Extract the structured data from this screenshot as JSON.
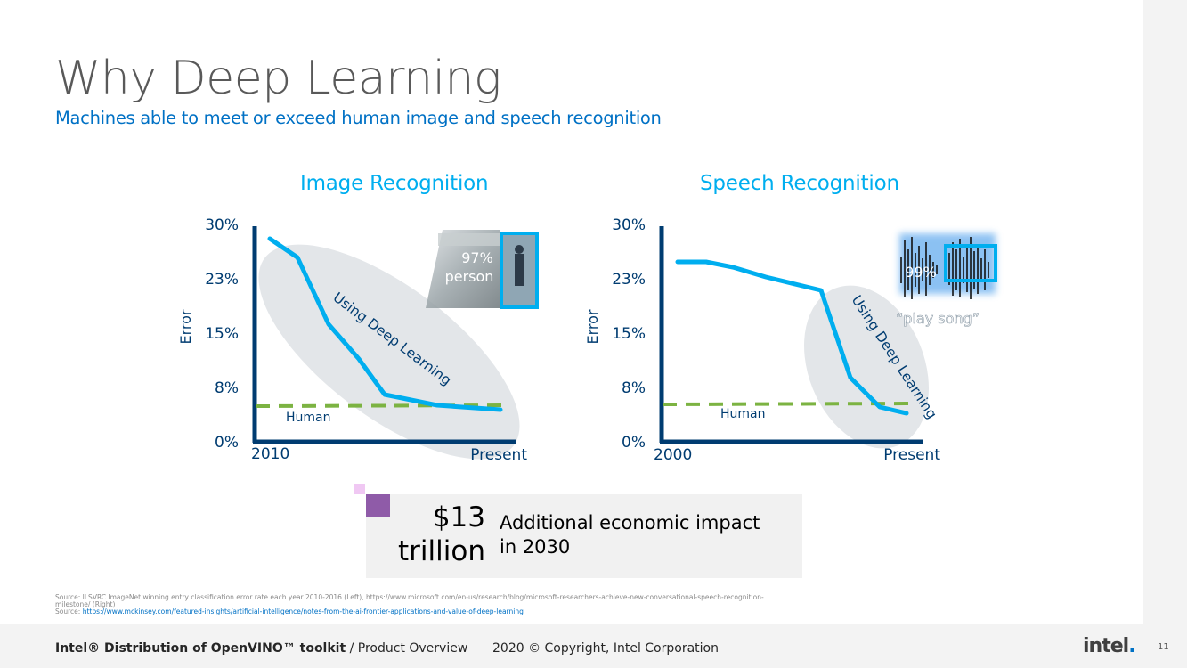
{
  "title": "Why Deep Learning",
  "subtitle": "Machines able to meet or exceed human image and speech recognition",
  "image_chart": {
    "title": "Image Recognition",
    "ylabel": "Error",
    "yticks": [
      "30%",
      "23%",
      "15%",
      "8%",
      "0%"
    ],
    "xstart": "2010",
    "xend": "Present",
    "human_label": "Human",
    "dl_label": "Using Deep Learning",
    "thumb_pct": "97%",
    "thumb_word": "person"
  },
  "speech_chart": {
    "title": "Speech Recognition",
    "ylabel": "Error",
    "yticks": [
      "30%",
      "23%",
      "15%",
      "8%",
      "0%"
    ],
    "xstart": "2000",
    "xend": "Present",
    "human_label": "Human",
    "dl_label": "Using Deep Learning",
    "thumb_pct": "99%",
    "thumb_word": "“play song”"
  },
  "impact": {
    "amount_line1": "$13",
    "amount_line2": "trillion",
    "text_line1": "Additional economic impact",
    "text_line2": "in 2030"
  },
  "sources": {
    "line1": "Source: ILSVRC ImageNet winning entry classification error rate each year 2010-2016 (Left), https://www.microsoft.com/en-us/research/blog/microsoft-researchers-achieve-new-conversational-speech-recognition-",
    "line2": "milestone/ (Right)",
    "line3_prefix": "Source:",
    "line3_link": "https://www.mckinsey.com/featured-insights/artificial-intelligence/notes-from-the-ai-frontier-applications-and-value-of-deep-learning"
  },
  "footer": {
    "product": "Intel® Distribution of OpenVINO™ toolkit",
    "section": " / Product Overview",
    "copyright": "2020 © Copyright, Intel Corporation",
    "logo": "intel",
    "logo_dot": "."
  },
  "page_number": "11",
  "colors": {
    "accent_cyan": "#00aeef",
    "axis_navy": "#003c71",
    "human_green": "#7cb342",
    "impact_purple": "#8f5ba8"
  }
}
